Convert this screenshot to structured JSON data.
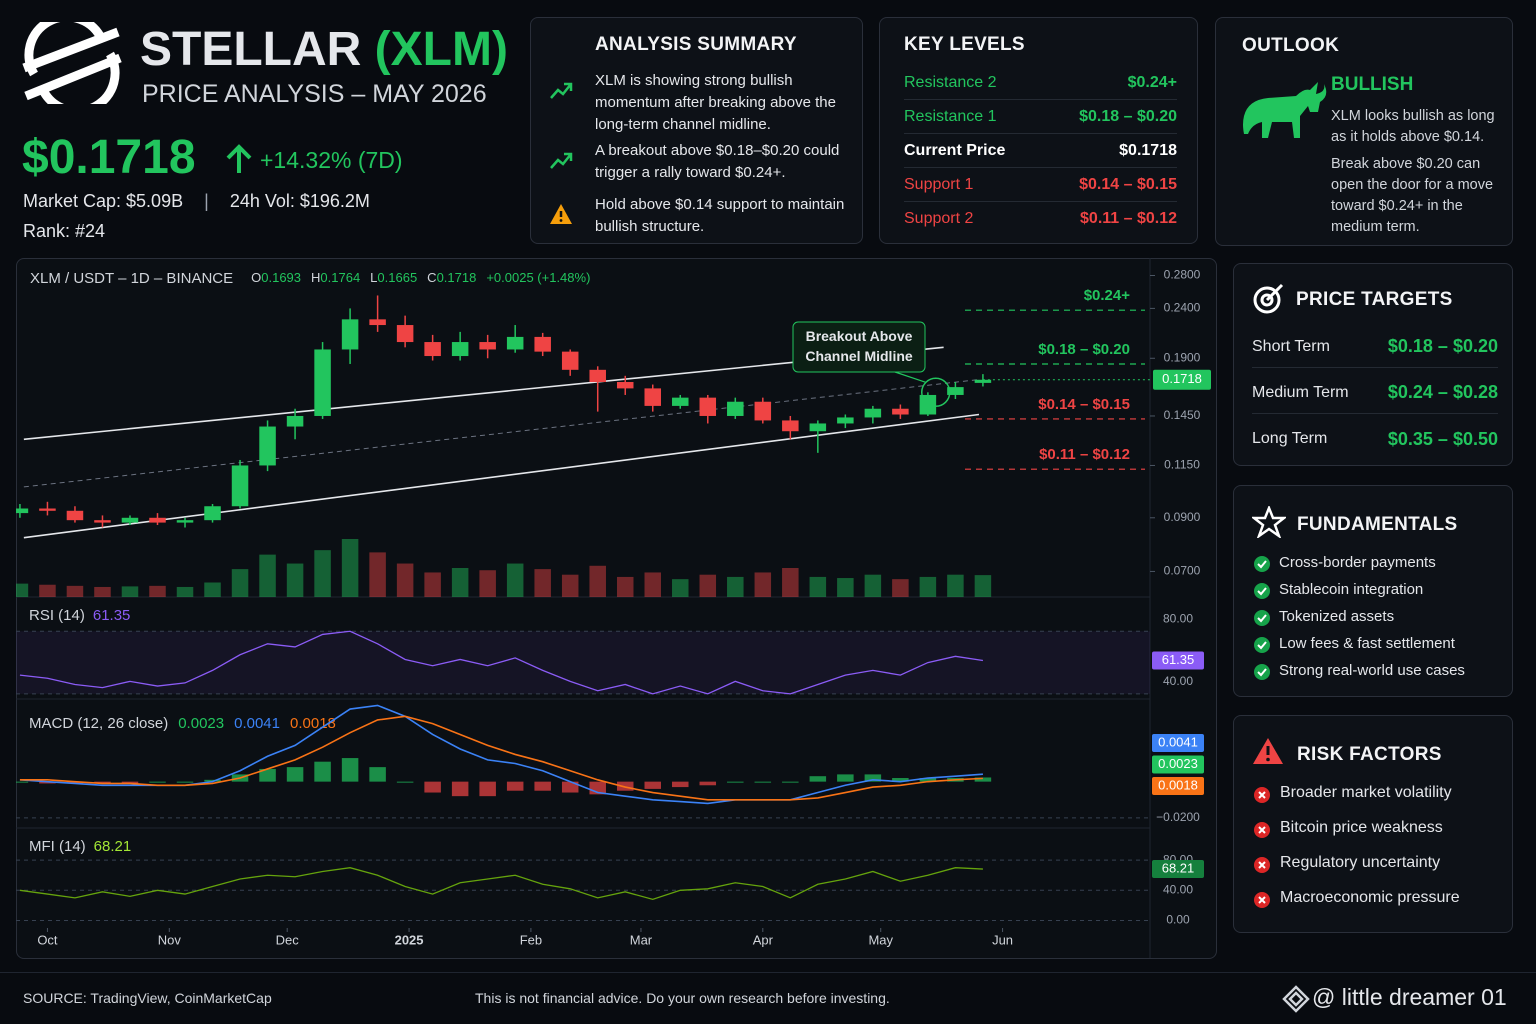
{
  "header": {
    "title": "STELLAR",
    "ticker": "(XLM)",
    "subtitle": "PRICE ANALYSIS – MAY 2026",
    "price": "$0.1718",
    "change": "+14.32% (7D)",
    "market_cap": "Market Cap: $5.09B",
    "separator": "|",
    "volume": "24h Vol: $196.2M",
    "rank": "Rank: #24"
  },
  "analysis_summary": {
    "title": "ANALYSIS SUMMARY",
    "items": [
      "XLM is showing strong bullish momentum after breaking above the long-term channel midline.",
      "A breakout above $0.18–$0.20 could trigger a rally toward $0.24+.",
      "Hold above $0.14 support to maintain bullish structure."
    ]
  },
  "key_levels": {
    "title": "KEY LEVELS",
    "rows": [
      {
        "label": "Resistance 2",
        "value": "$0.24+",
        "color": "#22c55e"
      },
      {
        "label": "Resistance 1",
        "value": "$0.18 – $0.20",
        "color": "#22c55e"
      },
      {
        "label": "Current Price",
        "value": "$0.1718",
        "color": "#ffffff"
      },
      {
        "label": "Support 1",
        "value": "$0.14 – $0.15",
        "color": "#ef4444"
      },
      {
        "label": "Support 2",
        "value": "$0.11 – $0.12",
        "color": "#ef4444"
      }
    ]
  },
  "outlook": {
    "title": "OUTLOOK",
    "sentiment": "BULLISH",
    "paragraphs": [
      "XLM looks bullish as long as it holds above $0.14.",
      "Break above $0.20 can open the door for a move toward $0.24+ in the medium term."
    ]
  },
  "price_targets": {
    "title": "PRICE TARGETS",
    "rows": [
      {
        "label": "Short Term",
        "value": "$0.18 – $0.20"
      },
      {
        "label": "Medium Term",
        "value": "$0.24 – $0.28"
      },
      {
        "label": "Long Term",
        "value": "$0.35 – $0.50"
      }
    ]
  },
  "fundamentals": {
    "title": "FUNDAMENTALS",
    "items": [
      "Cross-border payments",
      "Stablecoin integration",
      "Tokenized assets",
      "Low fees & fast settlement",
      "Strong real-world use cases"
    ]
  },
  "risk_factors": {
    "title": "RISK FACTORS",
    "items": [
      "Broader market volatility",
      "Bitcoin price weakness",
      "Regulatory uncertainty",
      "Macroeconomic pressure"
    ]
  },
  "footer": {
    "source": "SOURCE: TradingView, CoinMarketCap",
    "disclaimer": "This is not financial advice. Do your own research before investing.",
    "brand": "@ little dreamer 01"
  },
  "chart_data": {
    "type": "candlestick",
    "title": "XLM / USDT – 1D – BINANCE",
    "ohlc_legend": [
      {
        "label": "O",
        "value": "0.1693"
      },
      {
        "label": "H",
        "value": "0.1764"
      },
      {
        "label": "L",
        "value": "0.1665"
      },
      {
        "label": "C",
        "value": "0.1718"
      }
    ],
    "change_label": "+0.0025 (+1.48%)",
    "up_color": "#22c55e",
    "down_color": "#ef4444",
    "log_scale": true,
    "x": [
      -7,
      0,
      7,
      14,
      21,
      28,
      35,
      42,
      49,
      56,
      63,
      70,
      77,
      84,
      91,
      98,
      105,
      112,
      119,
      126,
      133,
      140,
      147,
      154,
      161,
      168,
      175,
      182,
      189,
      196,
      203,
      210,
      217,
      224,
      231,
      238
    ],
    "open": [
      0.092,
      0.094,
      0.093,
      0.089,
      0.088,
      0.09,
      0.088,
      0.089,
      0.095,
      0.115,
      0.138,
      0.145,
      0.198,
      0.228,
      0.222,
      0.205,
      0.192,
      0.205,
      0.198,
      0.21,
      0.196,
      0.18,
      0.17,
      0.165,
      0.152,
      0.158,
      0.145,
      0.155,
      0.142,
      0.135,
      0.14,
      0.144,
      0.15,
      0.146,
      0.16,
      0.1693
    ],
    "high": [
      0.096,
      0.097,
      0.095,
      0.091,
      0.091,
      0.092,
      0.09,
      0.096,
      0.118,
      0.142,
      0.15,
      0.205,
      0.24,
      0.255,
      0.232,
      0.212,
      0.215,
      0.212,
      0.222,
      0.214,
      0.198,
      0.183,
      0.175,
      0.168,
      0.16,
      0.16,
      0.158,
      0.158,
      0.145,
      0.142,
      0.146,
      0.152,
      0.153,
      0.162,
      0.17,
      0.1764
    ],
    "low": [
      0.09,
      0.091,
      0.088,
      0.086,
      0.087,
      0.087,
      0.086,
      0.088,
      0.094,
      0.112,
      0.13,
      0.143,
      0.185,
      0.215,
      0.2,
      0.188,
      0.188,
      0.19,
      0.195,
      0.192,
      0.175,
      0.148,
      0.16,
      0.148,
      0.15,
      0.14,
      0.143,
      0.14,
      0.13,
      0.122,
      0.137,
      0.14,
      0.143,
      0.145,
      0.157,
      0.1665
    ],
    "close": [
      0.094,
      0.093,
      0.089,
      0.088,
      0.09,
      0.088,
      0.089,
      0.095,
      0.115,
      0.138,
      0.145,
      0.198,
      0.228,
      0.222,
      0.205,
      0.192,
      0.205,
      0.198,
      0.21,
      0.196,
      0.18,
      0.17,
      0.165,
      0.152,
      0.158,
      0.145,
      0.155,
      0.142,
      0.135,
      0.14,
      0.144,
      0.15,
      0.146,
      0.16,
      0.166,
      0.1718
    ],
    "volume": [
      120,
      110,
      100,
      90,
      95,
      100,
      90,
      130,
      250,
      380,
      300,
      420,
      520,
      400,
      300,
      220,
      260,
      240,
      300,
      250,
      200,
      280,
      180,
      220,
      160,
      200,
      180,
      220,
      260,
      180,
      170,
      200,
      160,
      180,
      200,
      196.2
    ],
    "xlim": [
      -8,
      280
    ],
    "xticks": [
      {
        "value": 0,
        "label": "Oct"
      },
      {
        "value": 31,
        "label": "Nov"
      },
      {
        "value": 61,
        "label": "Dec"
      },
      {
        "value": 92,
        "label": "2025"
      },
      {
        "value": 123,
        "label": "Feb"
      },
      {
        "value": 151,
        "label": "Mar"
      },
      {
        "value": 182,
        "label": "Apr"
      },
      {
        "value": 212,
        "label": "May"
      },
      {
        "value": 243,
        "label": "Jun"
      }
    ],
    "ylim": [
      0.066,
      0.29
    ],
    "yticks": [
      {
        "value": 0.28,
        "label": "0.2800"
      },
      {
        "value": 0.24,
        "label": "0.2400"
      },
      {
        "value": 0.19,
        "label": "0.1900"
      },
      {
        "value": 0.145,
        "label": "0.1450"
      },
      {
        "value": 0.115,
        "label": "0.1150"
      },
      {
        "value": 0.09,
        "label": "0.0900"
      },
      {
        "value": 0.07,
        "label": "0.0700"
      }
    ],
    "last_price": {
      "value": 0.1718,
      "label": "0.1718",
      "color": "#22c55e"
    },
    "levels": [
      {
        "label": "$0.24+",
        "value": 0.238,
        "color": "#22c55e"
      },
      {
        "label": "$0.18 – $0.20",
        "value": 0.185,
        "color": "#22c55e"
      },
      {
        "label": "$0.14 – $0.15",
        "value": 0.143,
        "color": "#ef4444"
      },
      {
        "label": "$0.11 – $0.12",
        "value": 0.113,
        "color": "#ef4444"
      }
    ],
    "channel": {
      "upper": {
        "x": [
          -6,
          228
        ],
        "values": [
          0.13,
          0.2
        ]
      },
      "middle": {
        "x": [
          -6,
          237
        ],
        "values": [
          0.104,
          0.172
        ]
      },
      "lower": {
        "x": [
          -6,
          237
        ],
        "values": [
          0.082,
          0.146
        ]
      }
    },
    "annotation": {
      "text": "Breakout Above Channel Midline",
      "x": 226,
      "value": 0.162
    },
    "rsi": {
      "title": "RSI (14)",
      "value_label": "61.35",
      "color": "#8b5cf6",
      "ylim": [
        38,
        100
      ],
      "yticks": [
        {
          "value": 80,
          "label": "80.00"
        },
        {
          "value": 40,
          "label": "40.00"
        }
      ],
      "values": [
        52,
        50,
        46,
        44,
        48,
        45,
        47,
        55,
        65,
        72,
        70,
        78,
        80,
        72,
        62,
        58,
        62,
        58,
        63,
        55,
        48,
        42,
        46,
        40,
        45,
        40,
        48,
        42,
        40,
        46,
        52,
        55,
        52,
        60,
        64,
        61.35
      ]
    },
    "macd": {
      "title": "MACD (12, 26 close)",
      "ylim": [
        -0.025,
        0.045
      ],
      "yticks": [
        {
          "value": -0.02,
          "label": "−0.0200"
        }
      ],
      "series": [
        {
          "kind": "histogram",
          "color": "#22c55e",
          "value_label": "0.0023",
          "values": [
            0,
            -0.001,
            -0.001,
            -0.001,
            -0.001,
            0,
            0,
            0.001,
            0.004,
            0.007,
            0.008,
            0.011,
            0.013,
            0.008,
            0,
            -0.006,
            -0.008,
            -0.008,
            -0.005,
            -0.005,
            -0.006,
            -0.007,
            -0.005,
            -0.004,
            -0.003,
            -0.002,
            0,
            0,
            0,
            0.003,
            0.004,
            0.004,
            0.002,
            0.002,
            0.002,
            0.0023
          ]
        },
        {
          "kind": "line",
          "color": "#3b82f6",
          "value_label": "0.0041",
          "values": [
            0.001,
            0,
            -0.001,
            -0.002,
            -0.002,
            -0.002,
            -0.002,
            0,
            0.006,
            0.014,
            0.02,
            0.03,
            0.04,
            0.042,
            0.036,
            0.026,
            0.018,
            0.012,
            0.01,
            0.006,
            0,
            -0.006,
            -0.008,
            -0.01,
            -0.011,
            -0.012,
            -0.01,
            -0.01,
            -0.01,
            -0.006,
            -0.002,
            0.001,
            0,
            0.002,
            0.003,
            0.0041
          ]
        },
        {
          "kind": "line",
          "color": "#f97316",
          "value_label": "0.0018",
          "values": [
            0.001,
            0.001,
            0,
            -0.001,
            -0.001,
            -0.002,
            -0.002,
            -0.001,
            0.002,
            0.007,
            0.012,
            0.019,
            0.027,
            0.034,
            0.036,
            0.032,
            0.026,
            0.02,
            0.015,
            0.011,
            0.006,
            0.001,
            -0.003,
            -0.006,
            -0.008,
            -0.01,
            -0.01,
            -0.01,
            -0.01,
            -0.009,
            -0.006,
            -0.003,
            -0.002,
            0,
            0.001,
            0.0018
          ]
        }
      ]
    },
    "mfi": {
      "title": "MFI (14)",
      "value_label": "68.21",
      "color": "#65a30d",
      "ylim": [
        -10,
        120
      ],
      "yticks": [
        {
          "value": 80,
          "label": "80.00"
        },
        {
          "value": 40,
          "label": "40.00"
        },
        {
          "value": 0,
          "label": "0.00"
        }
      ],
      "values": [
        40,
        35,
        30,
        38,
        32,
        40,
        35,
        45,
        55,
        60,
        58,
        65,
        70,
        60,
        45,
        35,
        50,
        55,
        60,
        48,
        42,
        30,
        38,
        28,
        40,
        42,
        50,
        45,
        30,
        48,
        55,
        65,
        52,
        60,
        70,
        68.21
      ]
    }
  }
}
